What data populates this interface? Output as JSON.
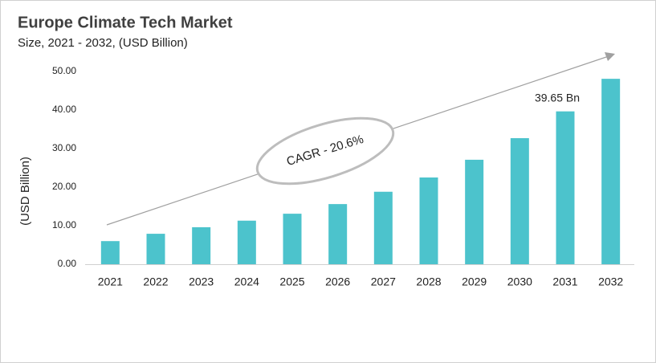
{
  "chart_data": {
    "type": "bar",
    "title": "Europe Climate Tech Market",
    "subtitle": "Size, 2021 - 2032, (USD Billion)",
    "y_label": "(USD Billion)",
    "annotation": "CAGR - 20.6%",
    "categories": [
      "2021",
      "2022",
      "2023",
      "2024",
      "2025",
      "2026",
      "2027",
      "2028",
      "2029",
      "2030",
      "2031",
      "2032"
    ],
    "values": [
      6.0,
      7.9,
      9.6,
      11.3,
      13.1,
      15.6,
      18.8,
      22.5,
      27.1,
      32.7,
      39.65,
      48.1
    ],
    "value_labels": [
      null,
      null,
      null,
      null,
      null,
      null,
      null,
      null,
      null,
      null,
      "39.65 Bn",
      null
    ],
    "color": "#4cc3cc",
    "ylim": [
      0,
      50
    ],
    "yticks": [
      {
        "value": 0,
        "label": "0.00"
      },
      {
        "value": 10,
        "label": "10.00"
      },
      {
        "value": 20,
        "label": "20.00"
      },
      {
        "value": 30,
        "label": "30.00"
      },
      {
        "value": 40,
        "label": "40.00"
      },
      {
        "value": 50,
        "label": "50.00"
      }
    ],
    "grid": false
  }
}
